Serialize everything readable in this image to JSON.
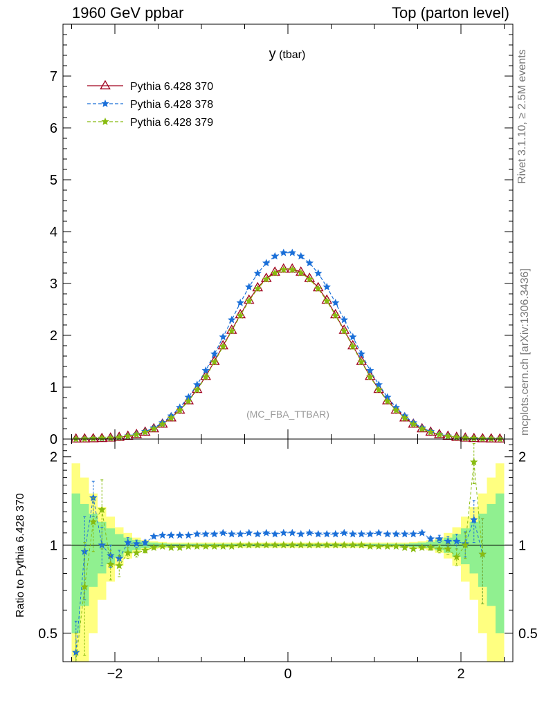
{
  "header": {
    "left": "1960 GeV ppbar",
    "right": "Top (parton level)"
  },
  "side_labels": {
    "rivet": "Rivet 3.1.10, ≥ 2.5M events",
    "mcplots": "mcplots.cern.ch [arXiv:1306.3436]"
  },
  "colors": {
    "s370": "#a0001e",
    "s378": "#1a6fd8",
    "s379": "#88bb10",
    "band_yellow": "#ffff80",
    "band_green": "#90f090"
  },
  "chart_data": [
    {
      "type": "line",
      "title": "y (tbar)",
      "watermark": "(MC_FBA_TTBAR)",
      "ylim": [
        0,
        8
      ],
      "xlim": [
        -2.6,
        2.6
      ],
      "yticks": [
        "0",
        "1",
        "2",
        "3",
        "4",
        "5",
        "6",
        "7"
      ],
      "legend_position": "top-left",
      "x": [
        -2.45,
        -2.35,
        -2.25,
        -2.15,
        -2.05,
        -1.95,
        -1.85,
        -1.75,
        -1.65,
        -1.55,
        -1.45,
        -1.35,
        -1.25,
        -1.15,
        -1.05,
        -0.95,
        -0.85,
        -0.75,
        -0.65,
        -0.55,
        -0.45,
        -0.35,
        -0.25,
        -0.15,
        -0.05,
        0.05,
        0.15,
        0.25,
        0.35,
        0.45,
        0.55,
        0.65,
        0.75,
        0.85,
        0.95,
        1.05,
        1.15,
        1.25,
        1.35,
        1.45,
        1.55,
        1.65,
        1.75,
        1.85,
        1.95,
        2.05,
        2.15,
        2.25,
        2.35,
        2.45
      ],
      "series": [
        {
          "name": "Pythia 6.428 370",
          "color_key": "s370",
          "marker": "triangle",
          "values": [
            0.003,
            0.005,
            0.008,
            0.013,
            0.021,
            0.035,
            0.056,
            0.088,
            0.135,
            0.2,
            0.29,
            0.41,
            0.56,
            0.74,
            0.96,
            1.21,
            1.5,
            1.8,
            2.1,
            2.4,
            2.68,
            2.92,
            3.1,
            3.22,
            3.28,
            3.28,
            3.22,
            3.1,
            2.92,
            2.68,
            2.4,
            2.1,
            1.8,
            1.5,
            1.21,
            0.96,
            0.74,
            0.56,
            0.41,
            0.29,
            0.2,
            0.135,
            0.088,
            0.056,
            0.035,
            0.021,
            0.013,
            0.008,
            0.005,
            0.003
          ]
        },
        {
          "name": "Pythia 6.428 378",
          "color_key": "s378",
          "marker": "star",
          "values": [
            0.002,
            0.005,
            0.011,
            0.013,
            0.019,
            0.034,
            0.058,
            0.093,
            0.145,
            0.216,
            0.315,
            0.446,
            0.608,
            0.806,
            1.048,
            1.322,
            1.64,
            1.968,
            2.298,
            2.627,
            2.933,
            3.196,
            3.394,
            3.526,
            3.592,
            3.592,
            3.526,
            3.394,
            3.196,
            2.933,
            2.627,
            2.298,
            1.968,
            1.64,
            1.322,
            1.048,
            0.806,
            0.608,
            0.446,
            0.315,
            0.216,
            0.145,
            0.092,
            0.057,
            0.034,
            0.021,
            0.012,
            0.007,
            0.005,
            0.003
          ]
        },
        {
          "name": "Pythia 6.428 379",
          "color_key": "s379",
          "marker": "star",
          "values": [
            0.002,
            0.004,
            0.01,
            0.017,
            0.018,
            0.032,
            0.054,
            0.085,
            0.132,
            0.196,
            0.285,
            0.404,
            0.552,
            0.73,
            0.949,
            1.197,
            1.485,
            1.783,
            2.083,
            2.381,
            2.661,
            2.902,
            3.082,
            3.202,
            3.264,
            3.264,
            3.202,
            3.082,
            2.902,
            2.661,
            2.381,
            2.083,
            1.783,
            1.485,
            1.197,
            0.949,
            0.73,
            0.552,
            0.404,
            0.285,
            0.196,
            0.132,
            0.085,
            0.054,
            0.032,
            0.019,
            0.013,
            0.007,
            0.004,
            0.002
          ]
        }
      ]
    },
    {
      "type": "line",
      "ylabel": "Ratio to Pythia 6.428 370",
      "ylim": [
        0.4,
        2.3
      ],
      "log_y": true,
      "xlim": [
        -2.6,
        2.6
      ],
      "xticks": [
        -2,
        0,
        2
      ],
      "xtick_labels": [
        "−2",
        "0",
        "2"
      ],
      "yticks": [
        0.5,
        1,
        2
      ],
      "ytick_labels": [
        "0.5",
        "1",
        "2"
      ],
      "x": [
        -2.45,
        -2.35,
        -2.25,
        -2.15,
        -2.05,
        -1.95,
        -1.85,
        -1.75,
        -1.65,
        -1.55,
        -1.45,
        -1.35,
        -1.25,
        -1.15,
        -1.05,
        -0.95,
        -0.85,
        -0.75,
        -0.65,
        -0.55,
        -0.45,
        -0.35,
        -0.25,
        -0.15,
        -0.05,
        0.05,
        0.15,
        0.25,
        0.35,
        0.45,
        0.55,
        0.65,
        0.75,
        0.85,
        0.95,
        1.05,
        1.15,
        1.25,
        1.35,
        1.45,
        1.55,
        1.65,
        1.75,
        1.85,
        1.95,
        2.05,
        2.15,
        2.25,
        2.35,
        2.45
      ],
      "bands": {
        "yellow_halfwidth": [
          0.9,
          0.7,
          0.5,
          0.35,
          0.25,
          0.15,
          0.1,
          0.06,
          0.04,
          0.03,
          0.025,
          0.02,
          0.02,
          0.02,
          0.02,
          0.02,
          0.02,
          0.02,
          0.02,
          0.02,
          0.02,
          0.02,
          0.02,
          0.02,
          0.02,
          0.02,
          0.02,
          0.02,
          0.02,
          0.02,
          0.02,
          0.02,
          0.02,
          0.02,
          0.02,
          0.02,
          0.02,
          0.02,
          0.02,
          0.025,
          0.03,
          0.04,
          0.06,
          0.1,
          0.15,
          0.25,
          0.35,
          0.5,
          0.7,
          0.9
        ],
        "green_halfwidth": [
          0.5,
          0.38,
          0.28,
          0.2,
          0.14,
          0.09,
          0.06,
          0.04,
          0.025,
          0.02,
          0.015,
          0.01,
          0.01,
          0.01,
          0.01,
          0.01,
          0.01,
          0.01,
          0.01,
          0.01,
          0.01,
          0.01,
          0.01,
          0.01,
          0.01,
          0.01,
          0.01,
          0.01,
          0.01,
          0.01,
          0.01,
          0.01,
          0.01,
          0.01,
          0.01,
          0.01,
          0.01,
          0.01,
          0.01,
          0.015,
          0.02,
          0.025,
          0.04,
          0.06,
          0.09,
          0.14,
          0.2,
          0.28,
          0.38,
          0.5
        ]
      },
      "series": [
        {
          "name": "Pythia 6.428 378",
          "color_key": "s378",
          "x": [
            -2.45,
            -2.35,
            -2.25,
            -2.15,
            -2.05,
            -1.95,
            -1.85,
            -1.75,
            -1.65,
            -1.55,
            -1.45,
            -1.35,
            -1.25,
            -1.15,
            -1.05,
            -0.95,
            -0.85,
            -0.75,
            -0.65,
            -0.55,
            -0.45,
            -0.35,
            -0.25,
            -0.15,
            -0.05,
            0.05,
            0.15,
            0.25,
            0.35,
            0.45,
            0.55,
            0.65,
            0.75,
            0.85,
            0.95,
            1.05,
            1.15,
            1.25,
            1.35,
            1.45,
            1.55,
            1.65,
            1.75,
            1.85,
            1.95,
            2.05,
            2.15,
            2.25
          ],
          "values": [
            0.43,
            0.95,
            1.45,
            1.0,
            0.92,
            0.9,
            1.02,
            1.01,
            1.02,
            1.07,
            1.08,
            1.08,
            1.08,
            1.08,
            1.09,
            1.09,
            1.09,
            1.1,
            1.09,
            1.09,
            1.1,
            1.09,
            1.1,
            1.09,
            1.1,
            1.1,
            1.09,
            1.1,
            1.09,
            1.09,
            1.09,
            1.1,
            1.09,
            1.09,
            1.09,
            1.1,
            1.09,
            1.09,
            1.09,
            1.09,
            1.1,
            1.05,
            1.05,
            1.03,
            1.03,
            1.01,
            1.22,
            0.93
          ],
          "errors": [
            0.12,
            0.3,
            0.2,
            0.15,
            0.08,
            0.06,
            0.04,
            0.03,
            0.02,
            0.01,
            0.01,
            0.01,
            0.01,
            0.01,
            0.01,
            0.01,
            0.01,
            0.01,
            0.01,
            0.01,
            0.01,
            0.01,
            0.01,
            0.01,
            0.01,
            0.01,
            0.01,
            0.01,
            0.01,
            0.01,
            0.01,
            0.01,
            0.01,
            0.01,
            0.01,
            0.01,
            0.01,
            0.01,
            0.01,
            0.01,
            0.01,
            0.02,
            0.03,
            0.04,
            0.06,
            0.1,
            0.2,
            0.3
          ]
        },
        {
          "name": "Pythia 6.428 379",
          "color_key": "s379",
          "x": [
            -2.45,
            -2.35,
            -2.25,
            -2.15,
            -2.05,
            -1.95,
            -1.85,
            -1.75,
            -1.65,
            -1.55,
            -1.45,
            -1.35,
            -1.25,
            -1.15,
            -1.05,
            -0.95,
            -0.85,
            -0.75,
            -0.65,
            -0.55,
            -0.45,
            -0.35,
            -0.25,
            -0.15,
            -0.05,
            0.05,
            0.15,
            0.25,
            0.35,
            0.45,
            0.55,
            0.65,
            0.75,
            0.85,
            0.95,
            1.05,
            1.15,
            1.25,
            1.35,
            1.45,
            1.55,
            1.65,
            1.75,
            1.85,
            1.95,
            2.05,
            2.15,
            2.25
          ],
          "values": [
            0.38,
            0.72,
            1.2,
            1.32,
            0.86,
            0.85,
            0.94,
            0.94,
            0.96,
            0.98,
            0.99,
            0.98,
            0.98,
            0.99,
            0.99,
            0.99,
            0.99,
            0.99,
            0.99,
            1.0,
            1.0,
            1.0,
            1.0,
            1.0,
            1.0,
            1.0,
            1.0,
            1.0,
            1.0,
            1.0,
            1.0,
            1.0,
            1.0,
            1.0,
            0.99,
            0.99,
            0.99,
            0.99,
            0.98,
            0.97,
            0.98,
            0.98,
            0.97,
            0.97,
            0.91,
            1.0,
            1.92,
            0.93
          ],
          "errors": [
            0.12,
            0.3,
            0.25,
            0.35,
            0.1,
            0.07,
            0.04,
            0.03,
            0.02,
            0.01,
            0.01,
            0.01,
            0.01,
            0.01,
            0.01,
            0.01,
            0.01,
            0.01,
            0.01,
            0.01,
            0.01,
            0.01,
            0.01,
            0.01,
            0.01,
            0.01,
            0.01,
            0.01,
            0.01,
            0.01,
            0.01,
            0.01,
            0.01,
            0.01,
            0.01,
            0.01,
            0.01,
            0.01,
            0.01,
            0.01,
            0.01,
            0.02,
            0.03,
            0.04,
            0.06,
            0.1,
            0.3,
            0.3
          ]
        }
      ]
    }
  ]
}
